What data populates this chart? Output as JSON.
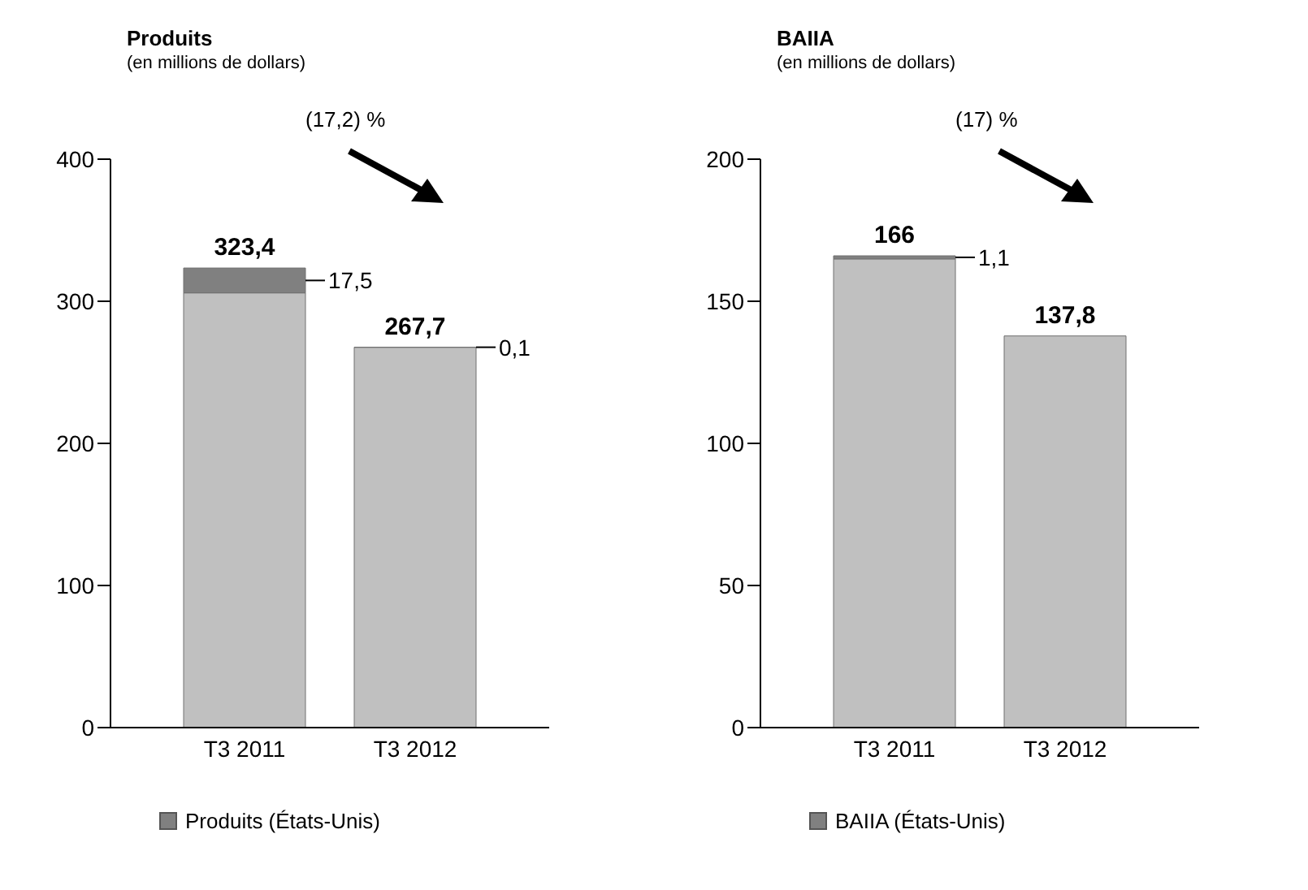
{
  "chart_data": [
    {
      "type": "bar",
      "title": "Produits",
      "subtitle": "(en millions de dollars)",
      "categories": [
        "T3 2011",
        "T3 2012"
      ],
      "stacked": true,
      "series": [
        {
          "color": "#c0c0c0",
          "values": [
            305.9,
            267.6
          ]
        },
        {
          "name": "Produits (États-Unis)",
          "color": "#808080",
          "values": [
            17.5,
            0.1
          ],
          "value_labels": [
            "17,5",
            "0,1"
          ]
        }
      ],
      "totals": [
        "323,4",
        "267,7"
      ],
      "ylim": [
        0,
        400
      ],
      "yticks": [
        0,
        100,
        200,
        300,
        400
      ],
      "legend": "bottom",
      "annotations": [
        "(17,2) %"
      ]
    },
    {
      "type": "bar",
      "title": "BAIIA",
      "subtitle": "(en millions de dollars)",
      "categories": [
        "T3 2011",
        "T3 2012"
      ],
      "stacked": true,
      "series": [
        {
          "color": "#c0c0c0",
          "values": [
            164.9,
            137.8
          ]
        },
        {
          "name": "BAIIA (États-Unis)",
          "color": "#808080",
          "values": [
            1.1,
            null
          ],
          "value_labels": [
            "1,1",
            null
          ]
        }
      ],
      "totals": [
        "166",
        "137,8"
      ],
      "ylim": [
        0,
        200
      ],
      "yticks": [
        0,
        50,
        100,
        150,
        200
      ],
      "legend": "bottom",
      "annotations": [
        "(17) %"
      ]
    }
  ]
}
